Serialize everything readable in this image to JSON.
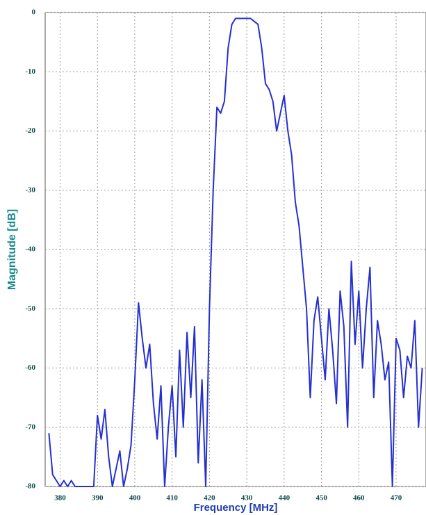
{
  "chart_data": {
    "type": "line",
    "xlabel": "Frequency [MHz]",
    "ylabel": "Magnitude [dB]",
    "x": [
      377,
      378,
      379,
      380,
      381,
      382,
      383,
      384,
      385,
      386,
      387,
      388,
      389,
      390,
      391,
      392,
      393,
      394,
      395,
      396,
      397,
      398,
      399,
      400,
      401,
      402,
      403,
      404,
      405,
      406,
      407,
      408,
      409,
      410,
      411,
      412,
      413,
      414,
      415,
      416,
      417,
      418,
      419,
      420,
      421,
      422,
      423,
      424,
      425,
      426,
      427,
      428,
      429,
      430,
      431,
      432,
      433,
      434,
      435,
      436,
      437,
      438,
      439,
      440,
      441,
      442,
      443,
      444,
      445,
      446,
      447,
      448,
      449,
      450,
      451,
      452,
      453,
      454,
      455,
      456,
      457,
      458,
      459,
      460,
      461,
      462,
      463,
      464,
      465,
      466,
      467,
      468,
      469,
      470,
      471,
      472,
      473,
      474,
      475,
      476,
      477
    ],
    "series": [
      {
        "color": "#2430d0",
        "values": [
          -71,
          -78,
          -79,
          -80,
          -79,
          -80,
          -79,
          -80,
          -80,
          -80,
          -80,
          -80,
          -80,
          -68,
          -72,
          -67,
          -75,
          -80,
          -77,
          -74,
          -80,
          -77,
          -73,
          -62,
          -49,
          -55,
          -60,
          -56,
          -66,
          -72,
          -63,
          -80,
          -70,
          -63,
          -75,
          -57,
          -70,
          -54,
          -65,
          -53,
          -76,
          -62,
          -80,
          -50,
          -30,
          -16,
          -17,
          -15,
          -6,
          -2,
          -1,
          -1,
          -1,
          -1,
          -1,
          -1.5,
          -2,
          -6,
          -12,
          -13,
          -15,
          -20,
          -17,
          -14,
          -20,
          -24,
          -32,
          -36,
          -43,
          -50,
          -65,
          -52,
          -48,
          -55,
          -62,
          -50,
          -57,
          -66,
          -47,
          -53,
          -70,
          -42,
          -56,
          -47,
          -60,
          -50,
          -43,
          -65,
          -52,
          -56,
          -62,
          -59,
          -80,
          -55,
          -57,
          -65,
          -58,
          -60,
          -52,
          -70,
          -60
        ]
      }
    ],
    "xlim": [
      376,
      478
    ],
    "ylim": [
      -80,
      0
    ],
    "xticks": [
      380,
      390,
      400,
      410,
      420,
      430,
      440,
      450,
      460,
      470
    ],
    "yticks": [
      0,
      -10,
      -20,
      -30,
      -40,
      -50,
      -60,
      -70,
      -80
    ],
    "grid": true
  }
}
